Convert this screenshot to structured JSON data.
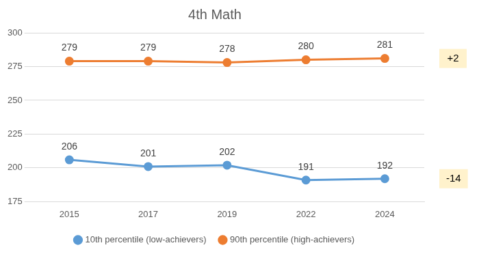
{
  "chart_data": {
    "type": "line",
    "title": "4th Math",
    "categories": [
      "2015",
      "2017",
      "2019",
      "2022",
      "2024"
    ],
    "series": [
      {
        "name": "10th percentile (low-achievers)",
        "color": "#5b9bd5",
        "values": [
          206,
          201,
          202,
          191,
          192
        ],
        "marker": "circle",
        "annotation": "-14"
      },
      {
        "name": "90th percentile (high-achievers)",
        "color": "#ed7d31",
        "values": [
          279,
          279,
          278,
          280,
          281
        ],
        "marker": "circle",
        "annotation": "+2"
      }
    ],
    "ylim": [
      175,
      300
    ],
    "yticks": [
      175,
      200,
      225,
      250,
      275,
      300
    ],
    "grid": true,
    "legend": "bottom",
    "data_labels": true
  }
}
